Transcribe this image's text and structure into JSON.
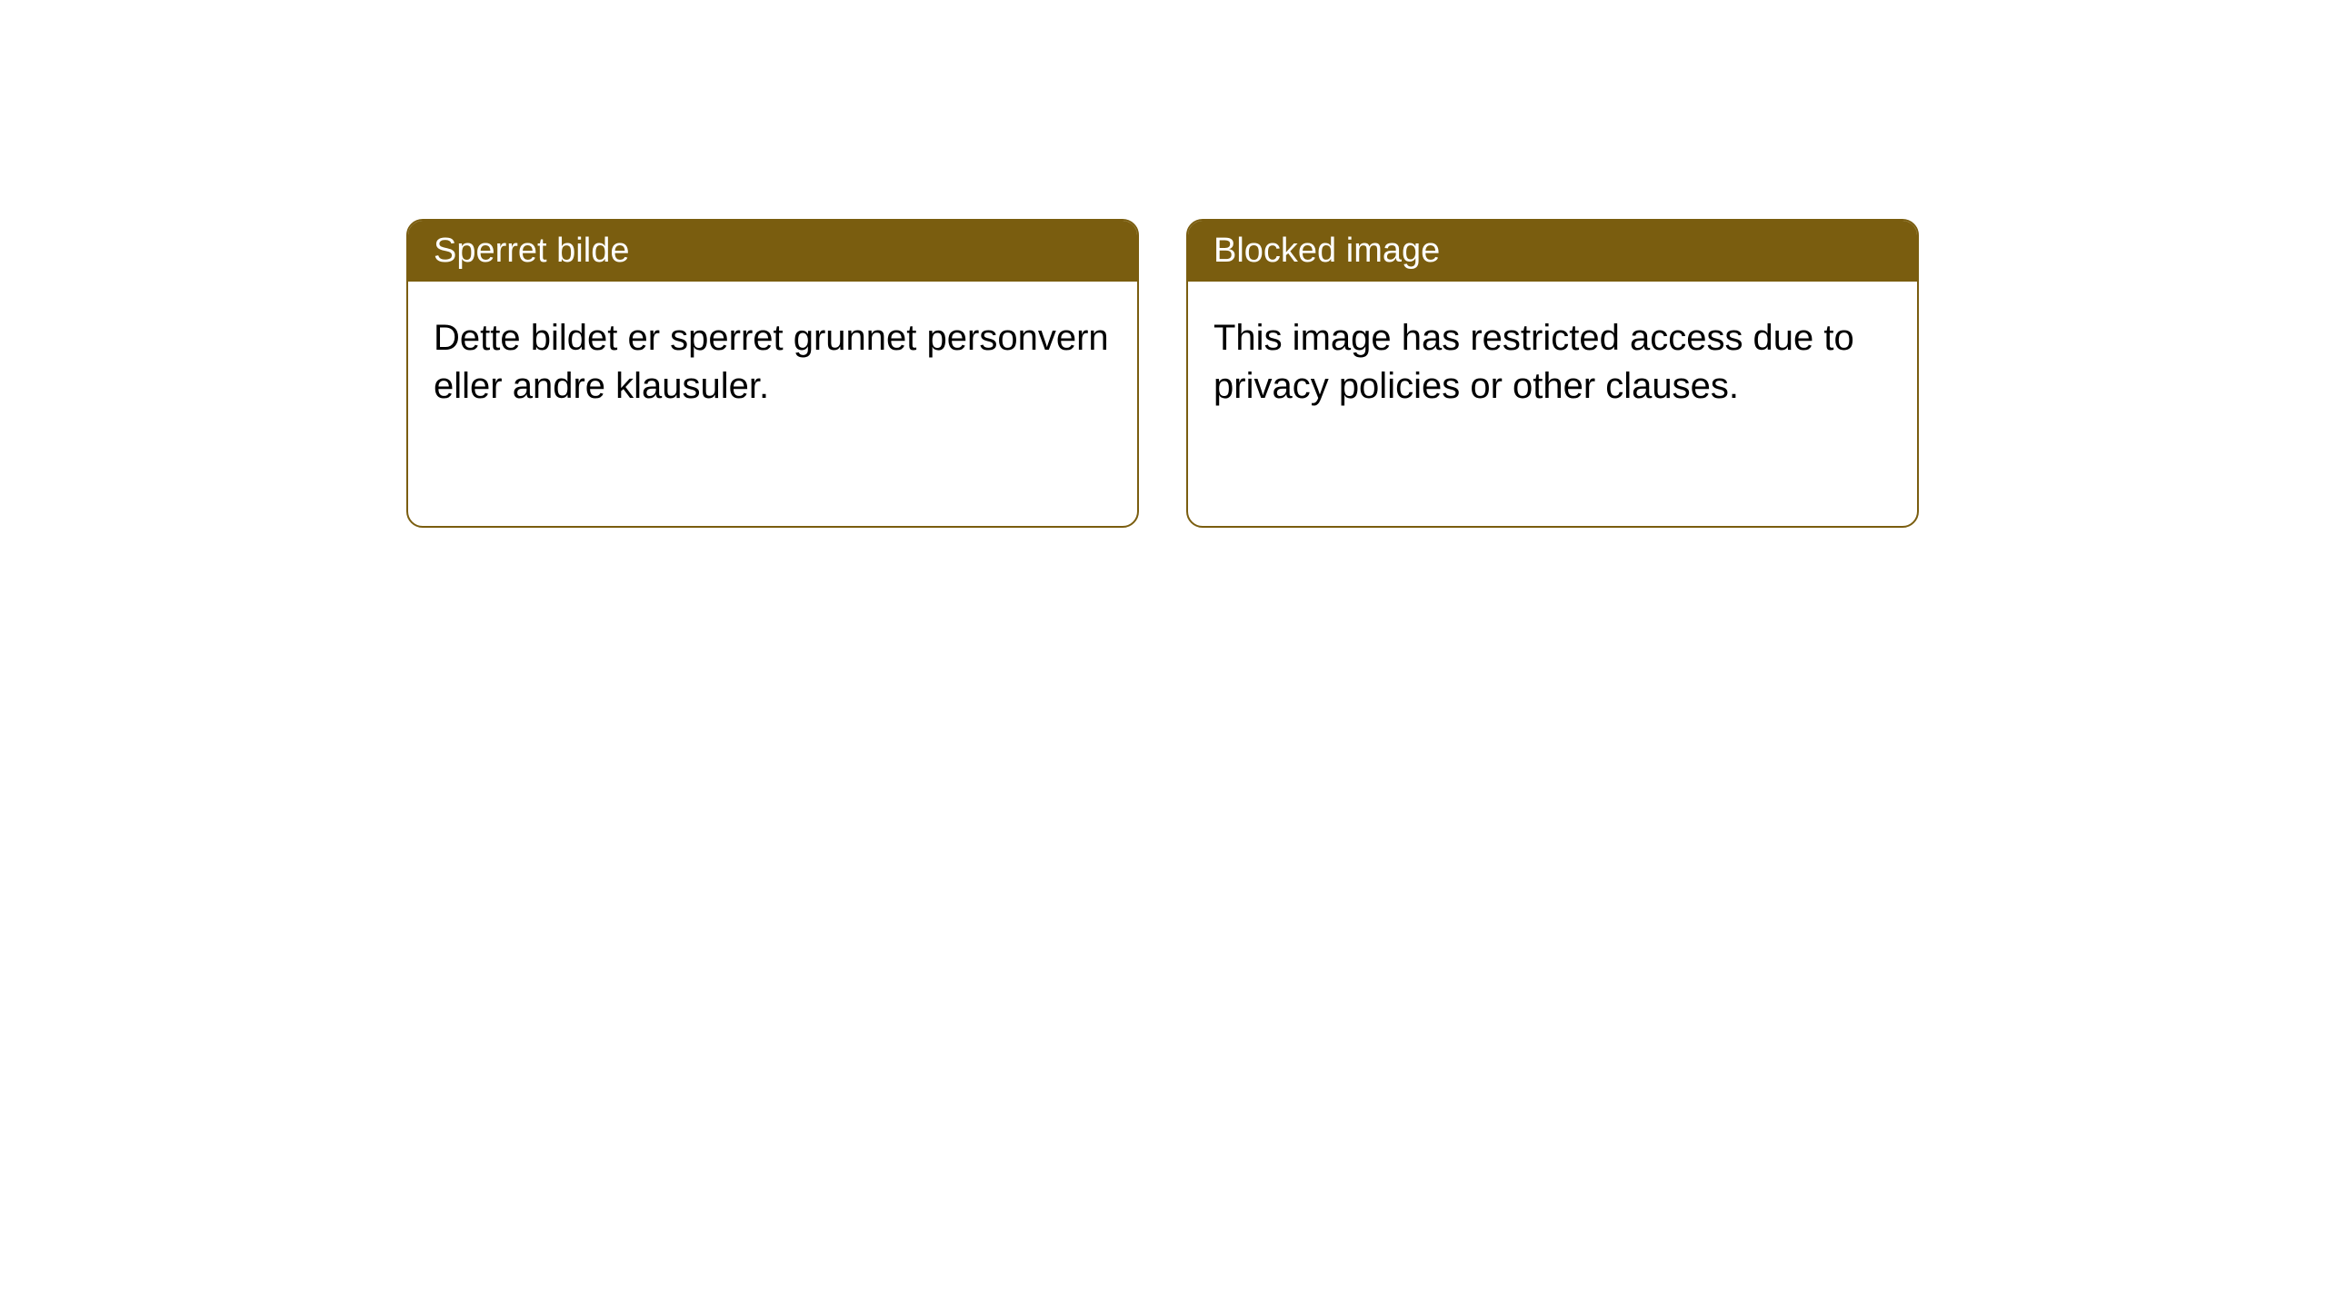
{
  "cards": [
    {
      "title": "Sperret bilde",
      "body": "Dette bildet er sperret grunnet personvern eller andre klausuler."
    },
    {
      "title": "Blocked image",
      "body": "This image has restricted access due to privacy policies or other clauses."
    }
  ],
  "style": {
    "header_bg_color": "#7a5d0f",
    "header_text_color": "#ffffff",
    "border_color": "#7a5d0f",
    "border_radius": 18,
    "card_bg_color": "#ffffff",
    "body_text_color": "#000000",
    "title_fontsize": 38,
    "body_fontsize": 40
  }
}
